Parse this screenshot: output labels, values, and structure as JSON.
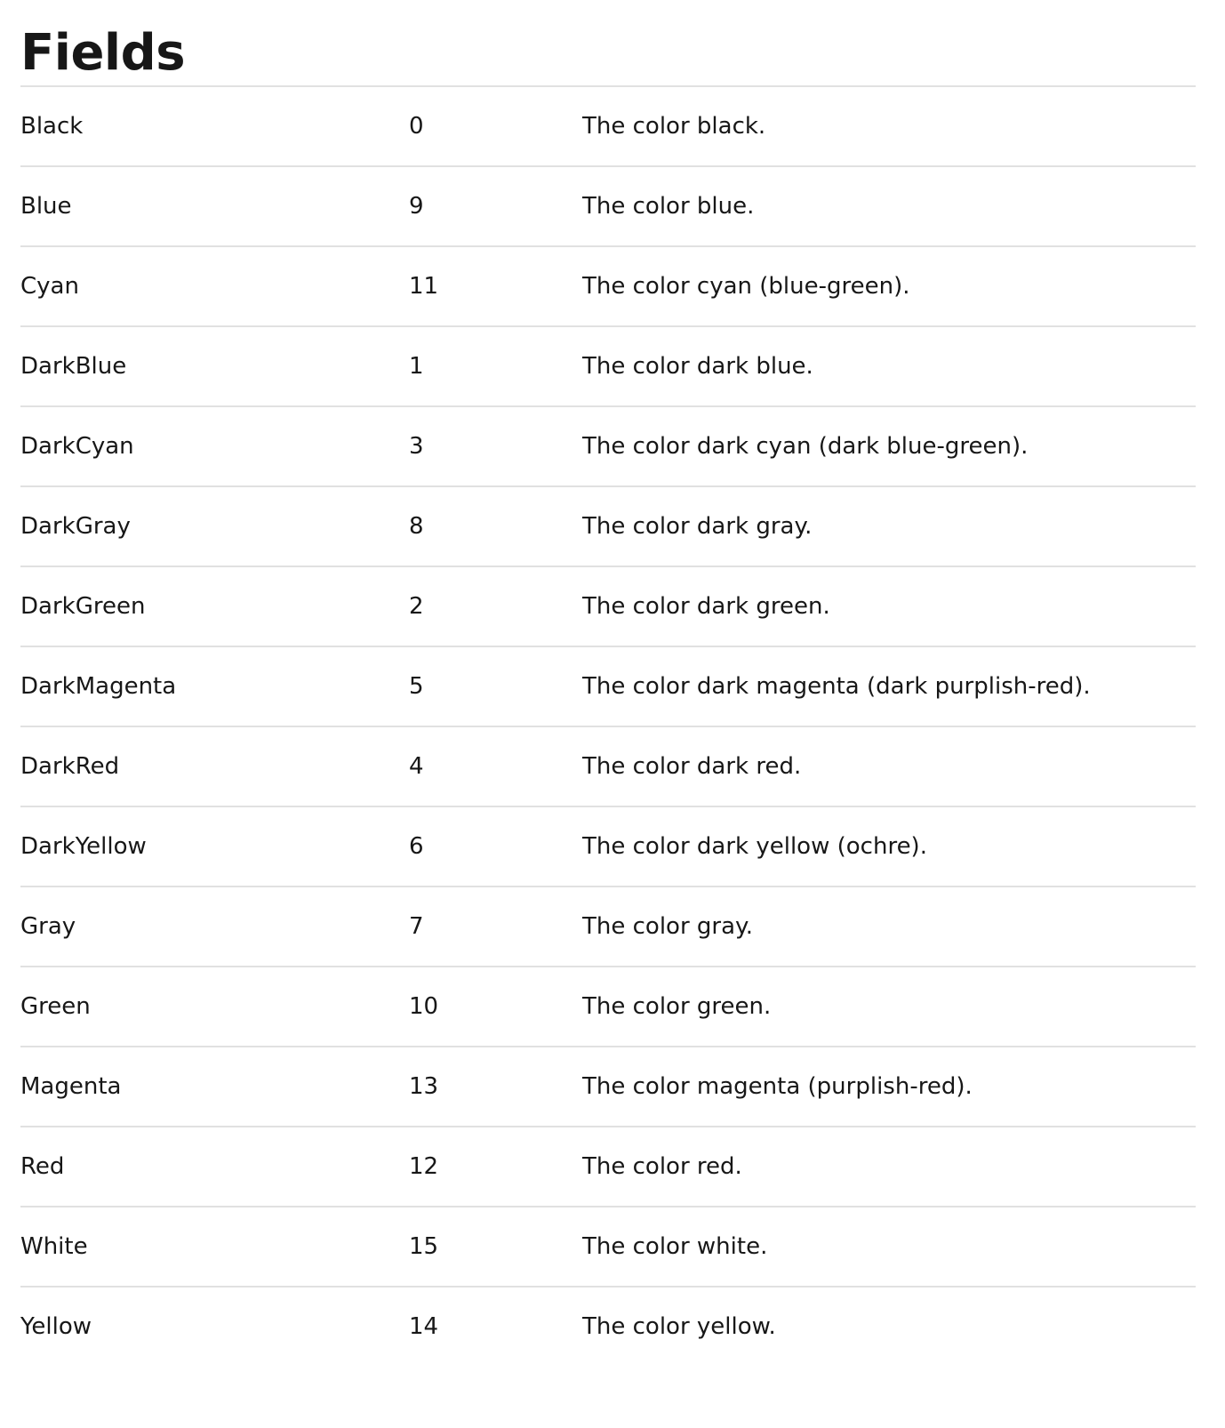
{
  "section": {
    "title": "Fields"
  },
  "fields": [
    {
      "name": "Black",
      "value": "0",
      "description": "The color black."
    },
    {
      "name": "Blue",
      "value": "9",
      "description": "The color blue."
    },
    {
      "name": "Cyan",
      "value": "11",
      "description": "The color cyan (blue-green)."
    },
    {
      "name": "DarkBlue",
      "value": "1",
      "description": "The color dark blue."
    },
    {
      "name": "DarkCyan",
      "value": "3",
      "description": "The color dark cyan (dark blue-green)."
    },
    {
      "name": "DarkGray",
      "value": "8",
      "description": "The color dark gray."
    },
    {
      "name": "DarkGreen",
      "value": "2",
      "description": "The color dark green."
    },
    {
      "name": "DarkMagenta",
      "value": "5",
      "description": "The color dark magenta (dark purplish-red)."
    },
    {
      "name": "DarkRed",
      "value": "4",
      "description": "The color dark red."
    },
    {
      "name": "DarkYellow",
      "value": "6",
      "description": "The color dark yellow (ochre)."
    },
    {
      "name": "Gray",
      "value": "7",
      "description": "The color gray."
    },
    {
      "name": "Green",
      "value": "10",
      "description": "The color green."
    },
    {
      "name": "Magenta",
      "value": "13",
      "description": "The color magenta (purplish-red)."
    },
    {
      "name": "Red",
      "value": "12",
      "description": "The color red."
    },
    {
      "name": "White",
      "value": "15",
      "description": "The color white."
    },
    {
      "name": "Yellow",
      "value": "14",
      "description": "The color yellow."
    }
  ]
}
